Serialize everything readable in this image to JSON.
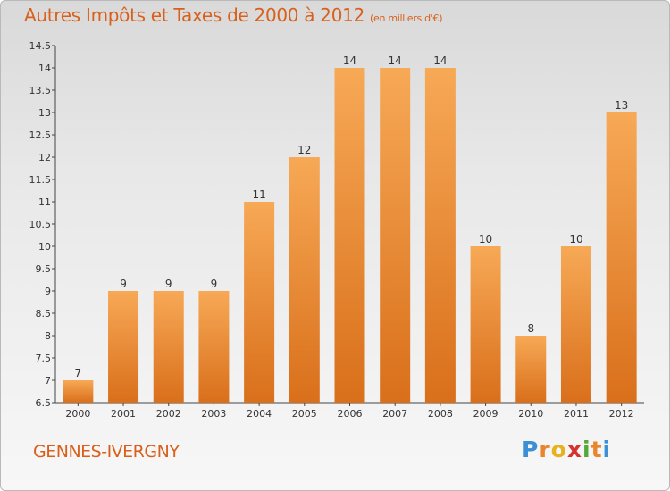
{
  "title": "Autres Impôts et Taxes de 2000 à 2012",
  "subtitle": "(en milliers d'€)",
  "commune": "GENNES-IVERGNY",
  "logo": {
    "letters": [
      "P",
      "r",
      "o",
      "x",
      "i",
      "t",
      "i"
    ],
    "colors": [
      "#3a8fd6",
      "#e9852b",
      "#e7b21f",
      "#d6322f",
      "#53a83a",
      "#e9852b",
      "#3a8fd6"
    ]
  },
  "colors": {
    "bar_light": "#f7a956",
    "bar_dark": "#d96f1b",
    "title": "#d9601b"
  },
  "chart_data": {
    "type": "bar",
    "categories": [
      "2000",
      "2001",
      "2002",
      "2003",
      "2004",
      "2005",
      "2006",
      "2007",
      "2008",
      "2009",
      "2010",
      "2011",
      "2012"
    ],
    "values": [
      7,
      9,
      9,
      9,
      11,
      12,
      14,
      14,
      14,
      10,
      8,
      10,
      13
    ],
    "value_labels": [
      "7",
      "9",
      "9",
      "9",
      "11",
      "12",
      "14",
      "14",
      "14",
      "10",
      "8",
      "10",
      "13"
    ],
    "ylim": [
      6.5,
      14.5
    ],
    "yticks": [
      6.5,
      7,
      7.5,
      8,
      8.5,
      9,
      9.5,
      10,
      10.5,
      11,
      11.5,
      12,
      12.5,
      13,
      13.5,
      14,
      14.5
    ],
    "ytick_labels": [
      "6.5",
      "7",
      "7.5",
      "8",
      "8.5",
      "9",
      "9.5",
      "10",
      "10.5",
      "11",
      "11.5",
      "12",
      "12.5",
      "13",
      "13.5",
      "14",
      "14.5"
    ],
    "title": "Autres Impôts et Taxes de 2000 à 2012",
    "xlabel": "",
    "ylabel": "",
    "grid": false
  }
}
